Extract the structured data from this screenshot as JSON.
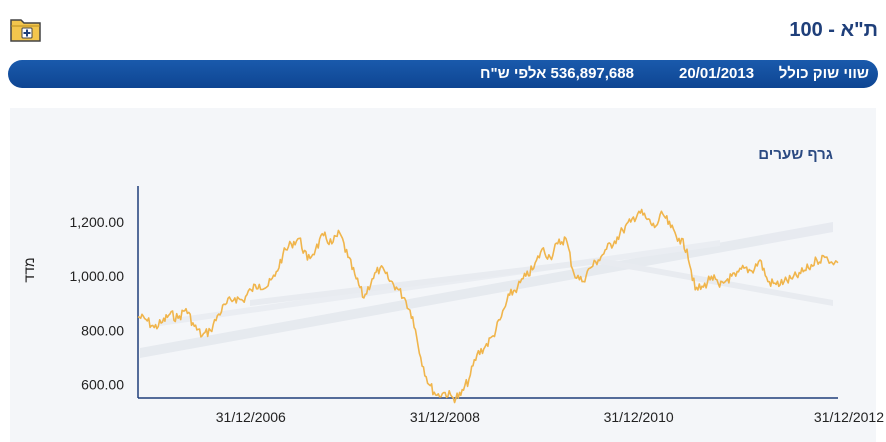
{
  "header": {
    "title": "ת\"א - 100",
    "folder_icon": "folder-add-icon"
  },
  "info_bar": {
    "label": "שווי שוק כולל",
    "date": "20/01/2013",
    "value": "536,897,688 אלפי ש\"ח"
  },
  "colors": {
    "bar": "#0e4592",
    "line": "#f0b54c",
    "title": "#1f3f7a"
  },
  "chart_data": {
    "type": "line",
    "title": "גרף שערים",
    "xlabel": "",
    "ylabel": "מדד",
    "xlim": [
      "2005-11-01",
      "2013-01-20"
    ],
    "ylim": [
      550,
      1400
    ],
    "yticks": [
      600,
      800,
      1000,
      1200
    ],
    "ytick_labels": [
      "600.00",
      "800.00",
      "1,000.00",
      "1,200.00"
    ],
    "xticks": [
      "2006-12-31",
      "2008-12-31",
      "2010-12-31",
      "2012-12-31"
    ],
    "xtick_labels": [
      "31/12/2006",
      "31/12/2008",
      "31/12/2010",
      "31/12/2012"
    ],
    "grid": false,
    "series": [
      {
        "color": "#f0b54c",
        "points": [
          [
            "2005-11-01",
            850
          ],
          [
            "2005-12-01",
            840
          ],
          [
            "2006-01-01",
            810
          ],
          [
            "2006-02-01",
            830
          ],
          [
            "2006-03-01",
            860
          ],
          [
            "2006-04-01",
            845
          ],
          [
            "2006-05-01",
            880
          ],
          [
            "2006-06-01",
            815
          ],
          [
            "2006-07-01",
            780
          ],
          [
            "2006-08-01",
            800
          ],
          [
            "2006-09-01",
            860
          ],
          [
            "2006-10-01",
            900
          ],
          [
            "2006-11-01",
            920
          ],
          [
            "2006-12-01",
            910
          ],
          [
            "2007-01-01",
            950
          ],
          [
            "2007-02-01",
            970
          ],
          [
            "2007-03-01",
            960
          ],
          [
            "2007-04-01",
            1000
          ],
          [
            "2007-05-01",
            1080
          ],
          [
            "2007-06-01",
            1120
          ],
          [
            "2007-07-01",
            1140
          ],
          [
            "2007-08-01",
            1060
          ],
          [
            "2007-09-01",
            1100
          ],
          [
            "2007-10-01",
            1150
          ],
          [
            "2007-11-01",
            1120
          ],
          [
            "2007-12-01",
            1160
          ],
          [
            "2008-01-01",
            1070
          ],
          [
            "2008-02-01",
            990
          ],
          [
            "2008-03-01",
            920
          ],
          [
            "2008-04-01",
            990
          ],
          [
            "2008-05-01",
            1030
          ],
          [
            "2008-06-01",
            990
          ],
          [
            "2008-07-01",
            960
          ],
          [
            "2008-08-01",
            920
          ],
          [
            "2008-09-01",
            850
          ],
          [
            "2008-10-01",
            700
          ],
          [
            "2008-11-01",
            600
          ],
          [
            "2008-12-01",
            560
          ],
          [
            "2009-01-01",
            570
          ],
          [
            "2009-02-01",
            550
          ],
          [
            "2009-03-01",
            560
          ],
          [
            "2009-04-01",
            620
          ],
          [
            "2009-05-01",
            710
          ],
          [
            "2009-06-01",
            740
          ],
          [
            "2009-07-01",
            780
          ],
          [
            "2009-08-01",
            850
          ],
          [
            "2009-09-01",
            930
          ],
          [
            "2009-10-01",
            960
          ],
          [
            "2009-11-01",
            1000
          ],
          [
            "2009-12-01",
            1030
          ],
          [
            "2010-01-01",
            1100
          ],
          [
            "2010-02-01",
            1070
          ],
          [
            "2010-03-01",
            1120
          ],
          [
            "2010-04-01",
            1140
          ],
          [
            "2010-05-01",
            1010
          ],
          [
            "2010-06-01",
            980
          ],
          [
            "2010-07-01",
            1030
          ],
          [
            "2010-08-01",
            1060
          ],
          [
            "2010-09-01",
            1100
          ],
          [
            "2010-10-01",
            1130
          ],
          [
            "2010-11-01",
            1170
          ],
          [
            "2010-12-01",
            1200
          ],
          [
            "2011-01-01",
            1240
          ],
          [
            "2011-02-01",
            1210
          ],
          [
            "2011-03-01",
            1180
          ],
          [
            "2011-04-01",
            1230
          ],
          [
            "2011-05-01",
            1180
          ],
          [
            "2011-06-01",
            1140
          ],
          [
            "2011-07-01",
            1100
          ],
          [
            "2011-08-01",
            950
          ],
          [
            "2011-09-01",
            960
          ],
          [
            "2011-10-01",
            1000
          ],
          [
            "2011-11-01",
            960
          ],
          [
            "2011-12-01",
            990
          ],
          [
            "2012-01-01",
            1000
          ],
          [
            "2012-02-01",
            1030
          ],
          [
            "2012-03-01",
            1020
          ],
          [
            "2012-04-01",
            1060
          ],
          [
            "2012-05-01",
            980
          ],
          [
            "2012-06-01",
            970
          ],
          [
            "2012-07-01",
            980
          ],
          [
            "2012-08-01",
            990
          ],
          [
            "2012-09-01",
            1010
          ],
          [
            "2012-10-01",
            1030
          ],
          [
            "2012-11-01",
            1060
          ],
          [
            "2012-12-01",
            1070
          ],
          [
            "2013-01-20",
            1050
          ]
        ]
      }
    ]
  }
}
